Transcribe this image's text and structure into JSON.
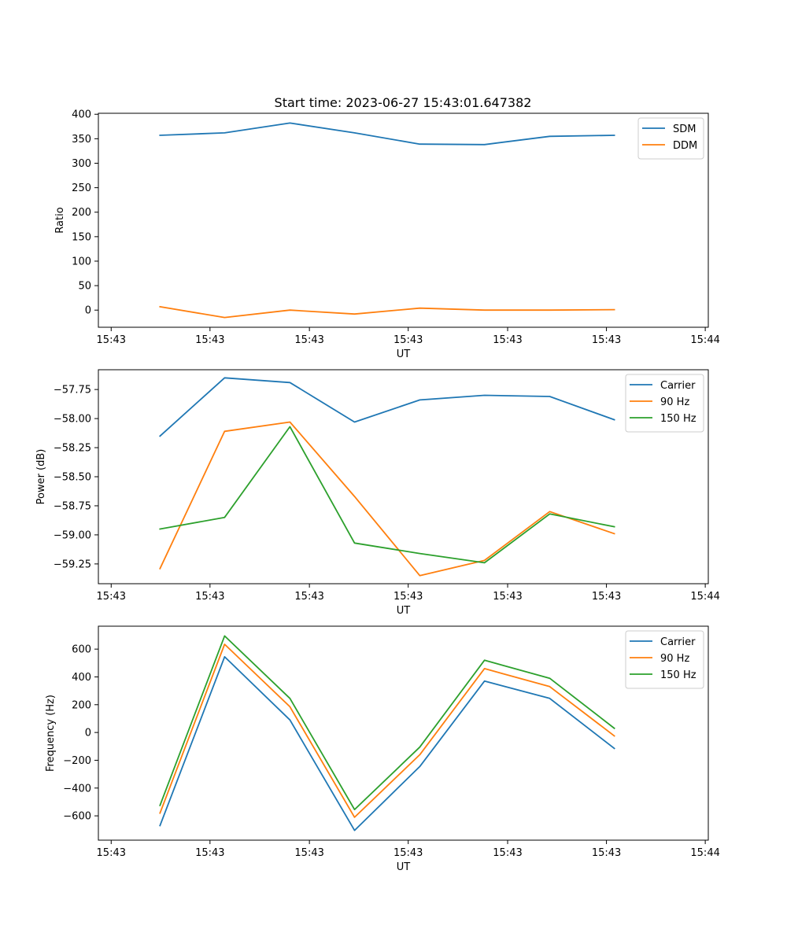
{
  "title": "Start time: 2023-06-27 15:43:01.647382",
  "colors": {
    "blue": "#1f77b4",
    "orange": "#ff7f0e",
    "green": "#2ca02c"
  },
  "chart_data": [
    {
      "type": "line",
      "xlabel": "UT",
      "ylabel": "Ratio",
      "x_tick_labels": [
        "15:43",
        "15:43",
        "15:43",
        "15:43",
        "15:43",
        "15:43",
        "15:44"
      ],
      "y_ticks": [
        0,
        50,
        100,
        150,
        200,
        250,
        300,
        350,
        400
      ],
      "ylim": [
        -35,
        402
      ],
      "legend_position": "top-right",
      "x_points": 8,
      "series": [
        {
          "name": "SDM",
          "color": "#1f77b4",
          "values": [
            357,
            362,
            382,
            362,
            339,
            338,
            355,
            357
          ]
        },
        {
          "name": "DDM",
          "color": "#ff7f0e",
          "values": [
            7,
            -15,
            0,
            -8,
            4,
            0,
            0,
            1
          ]
        }
      ]
    },
    {
      "type": "line",
      "xlabel": "UT",
      "ylabel": "Power (dB)",
      "x_tick_labels": [
        "15:43",
        "15:43",
        "15:43",
        "15:43",
        "15:43",
        "15:43",
        "15:44"
      ],
      "y_ticks": [
        -59.25,
        -59.0,
        -58.75,
        -58.5,
        -58.25,
        -58.0,
        -57.75
      ],
      "y_tick_labels": [
        "−59.25",
        "−59.00",
        "−58.75",
        "−58.50",
        "−58.25",
        "−58.00",
        "−57.75"
      ],
      "ylim": [
        -59.42,
        -57.58
      ],
      "legend_position": "top-right",
      "x_points": 8,
      "series": [
        {
          "name": "Carrier",
          "color": "#1f77b4",
          "values": [
            -58.15,
            -57.65,
            -57.69,
            -58.03,
            -57.84,
            -57.8,
            -57.81,
            -58.01
          ]
        },
        {
          "name": "90 Hz",
          "color": "#ff7f0e",
          "values": [
            -59.29,
            -58.11,
            -58.03,
            -58.67,
            -59.35,
            -59.22,
            -58.8,
            -58.99
          ]
        },
        {
          "name": "150 Hz",
          "color": "#2ca02c",
          "values": [
            -58.95,
            -58.85,
            -58.07,
            -59.07,
            -59.16,
            -59.24,
            -58.82,
            -58.93
          ]
        }
      ]
    },
    {
      "type": "line",
      "xlabel": "UT",
      "ylabel": "Frequency (Hz)",
      "x_tick_labels": [
        "15:43",
        "15:43",
        "15:43",
        "15:43",
        "15:43",
        "15:43",
        "15:44"
      ],
      "y_ticks": [
        -600,
        -400,
        -200,
        0,
        200,
        400,
        600
      ],
      "y_tick_labels": [
        "−600",
        "−400",
        "−200",
        "0",
        "200",
        "400",
        "600"
      ],
      "ylim": [
        -775,
        765
      ],
      "legend_position": "top-right",
      "x_points": 8,
      "series": [
        {
          "name": "Carrier",
          "color": "#1f77b4",
          "values": [
            -670,
            545,
            90,
            -705,
            -245,
            370,
            245,
            -115
          ]
        },
        {
          "name": "90 Hz",
          "color": "#ff7f0e",
          "values": [
            -580,
            635,
            185,
            -610,
            -160,
            460,
            330,
            -25
          ]
        },
        {
          "name": "150 Hz",
          "color": "#2ca02c",
          "values": [
            -525,
            695,
            245,
            -555,
            -105,
            520,
            390,
            30
          ]
        }
      ]
    }
  ]
}
